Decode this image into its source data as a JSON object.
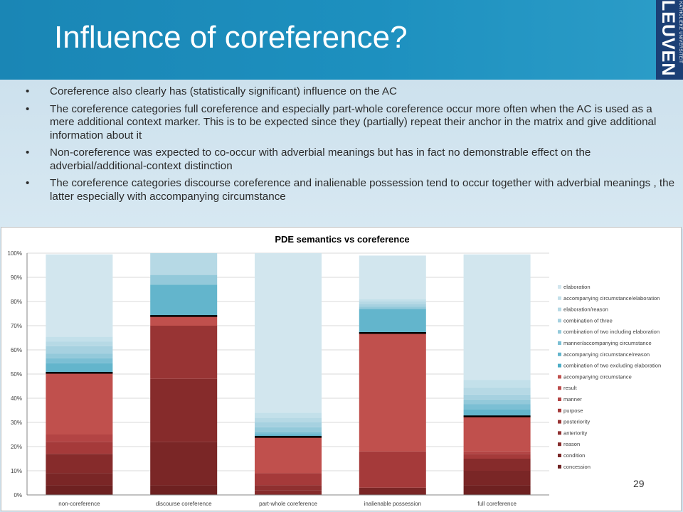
{
  "slide": {
    "title": "Influence of coreference?",
    "logo_small": "KATHOLIEKE UNIVERSITEIT",
    "logo_big": "LEUVEN",
    "page_number": "29",
    "bullets": [
      "Coreference also clearly has (statistically significant) influence on the AC",
      "The coreference categories full coreference and especially part-whole coreference occur more often when the AC is used as a mere additional context marker. This is to be expected since they (partially) repeat their anchor in the matrix and give additional information about it",
      "Non-coreference was expected to co-occur with adverbial meanings but has in fact no demonstrable effect on the adverbial/additional-context distinction",
      "The coreference categories discourse coreference and inalienable possession tend to occur together with adverbial meanings , the latter especially with accompanying circumstance"
    ]
  },
  "chart_data": {
    "type": "bar",
    "stacked": true,
    "title": "PDE semantics vs coreference",
    "categories": [
      "non-coreference",
      "discourse coreference",
      "part-whole coreference",
      "inalienable possession",
      "full coreference"
    ],
    "yticks": [
      "0%",
      "10%",
      "20%",
      "30%",
      "40%",
      "50%",
      "60%",
      "70%",
      "80%",
      "90%",
      "100%"
    ],
    "ylim": [
      0,
      100
    ],
    "legend_position": "right",
    "divider_values": [
      50.5,
      74,
      24,
      67,
      32.5
    ],
    "series": [
      {
        "name": "concession",
        "color": "#6e2121",
        "values": [
          4,
          4,
          0,
          0,
          4
        ]
      },
      {
        "name": "condition",
        "color": "#7a2626",
        "values": [
          5,
          18,
          0,
          3,
          6
        ]
      },
      {
        "name": "reason",
        "color": "#862b2b",
        "values": [
          8,
          26,
          2,
          0,
          5
        ]
      },
      {
        "name": "anteriority",
        "color": "#8f3030",
        "values": [
          0,
          0,
          2,
          0,
          0
        ]
      },
      {
        "name": "posteriority",
        "color": "#983434",
        "values": [
          0,
          22,
          0,
          0,
          0
        ]
      },
      {
        "name": "purpose",
        "color": "#a53a3a",
        "values": [
          5,
          0,
          5,
          15,
          2
        ]
      },
      {
        "name": "manner",
        "color": "#b34444",
        "values": [
          3,
          0,
          0,
          0,
          1
        ]
      },
      {
        "name": "result",
        "color": "#bb4b4b",
        "values": [
          0,
          0,
          0,
          0,
          0
        ]
      },
      {
        "name": "accompanying circumstance",
        "color": "#c0504d",
        "values": [
          25.5,
          4,
          15,
          49,
          14.5
        ]
      },
      {
        "name": "combination of two excluding elaboration",
        "color": "#4bacc6",
        "values": [
          0,
          0,
          0,
          0,
          0
        ]
      },
      {
        "name": "accompanying circumstance/reason",
        "color": "#63b5cc",
        "values": [
          4,
          13,
          1,
          10,
          3
        ]
      },
      {
        "name": "manner/accompanying circumstance",
        "color": "#7bbfd4",
        "values": [
          2,
          0,
          1,
          0,
          2
        ]
      },
      {
        "name": "combination of two including elaboration",
        "color": "#93c9da",
        "values": [
          2,
          4,
          2,
          1,
          2
        ]
      },
      {
        "name": "combination of three",
        "color": "#a6d1e0",
        "values": [
          3,
          0,
          2,
          1,
          2
        ]
      },
      {
        "name": "elaboration/reason",
        "color": "#b6d9e5",
        "values": [
          2,
          9,
          2,
          1,
          3
        ]
      },
      {
        "name": "accompanying circumstance/elaboration",
        "color": "#c3e0ea",
        "values": [
          2,
          0,
          2,
          1,
          3
        ]
      },
      {
        "name": "elaboration",
        "color": "#d2e6ee",
        "values": [
          34,
          0,
          66,
          18,
          52
        ]
      }
    ]
  }
}
